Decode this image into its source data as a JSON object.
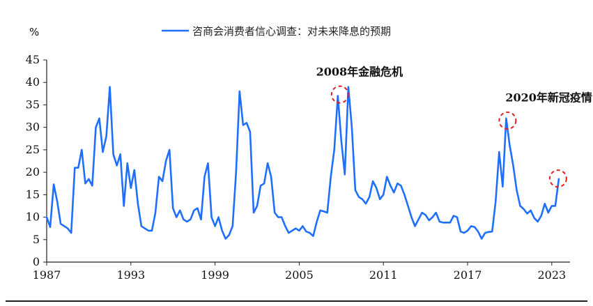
{
  "chart_data": {
    "type": "line",
    "ylabel": "%",
    "ylim": [
      0,
      45
    ],
    "y_ticks": [
      "0",
      "5",
      "10",
      "15",
      "20",
      "25",
      "30",
      "35",
      "40",
      "45"
    ],
    "xlim": [
      1987,
      2024.3
    ],
    "x_ticks": [
      {
        "value": 1987,
        "label": "1987"
      },
      {
        "value": 1993,
        "label": "1993"
      },
      {
        "value": 1999,
        "label": "1999"
      },
      {
        "value": 2005,
        "label": "2005"
      },
      {
        "value": 2011,
        "label": "2011"
      },
      {
        "value": 2017,
        "label": "2017"
      },
      {
        "value": 2023,
        "label": "2023"
      }
    ],
    "grid": false,
    "legend_position": "top-center",
    "series": [
      {
        "name": "咨商会消费者信心调查：对未来降息的预期",
        "color": "#1f6fff",
        "points": [
          [
            1987.0,
            10
          ],
          [
            1987.25,
            7.8
          ],
          [
            1987.5,
            17.3
          ],
          [
            1987.75,
            13.5
          ],
          [
            1988.0,
            8.5
          ],
          [
            1988.25,
            8
          ],
          [
            1988.5,
            7.5
          ],
          [
            1988.75,
            6.5
          ],
          [
            1989.0,
            21
          ],
          [
            1989.25,
            21
          ],
          [
            1989.5,
            25
          ],
          [
            1989.75,
            17.5
          ],
          [
            1990.0,
            18.5
          ],
          [
            1990.25,
            17
          ],
          [
            1990.5,
            30
          ],
          [
            1990.75,
            32
          ],
          [
            1991.0,
            24.5
          ],
          [
            1991.25,
            28
          ],
          [
            1991.5,
            39
          ],
          [
            1991.75,
            24
          ],
          [
            1992.0,
            21.5
          ],
          [
            1992.25,
            24
          ],
          [
            1992.5,
            12.5
          ],
          [
            1992.75,
            22
          ],
          [
            1993.0,
            16.5
          ],
          [
            1993.25,
            20.5
          ],
          [
            1993.5,
            13
          ],
          [
            1993.75,
            8
          ],
          [
            1994.0,
            7.5
          ],
          [
            1994.25,
            7
          ],
          [
            1994.5,
            7
          ],
          [
            1994.75,
            11
          ],
          [
            1995.0,
            19
          ],
          [
            1995.25,
            18
          ],
          [
            1995.5,
            22.5
          ],
          [
            1995.75,
            25
          ],
          [
            1996.0,
            12
          ],
          [
            1996.25,
            10
          ],
          [
            1996.5,
            11.5
          ],
          [
            1996.75,
            9.5
          ],
          [
            1997.0,
            9
          ],
          [
            1997.25,
            9.5
          ],
          [
            1997.5,
            11.5
          ],
          [
            1997.75,
            12
          ],
          [
            1998.0,
            9.5
          ],
          [
            1998.25,
            19
          ],
          [
            1998.5,
            22
          ],
          [
            1998.75,
            10
          ],
          [
            1999.0,
            8
          ],
          [
            1999.25,
            10
          ],
          [
            1999.5,
            7
          ],
          [
            1999.75,
            5.2
          ],
          [
            2000.0,
            6
          ],
          [
            2000.25,
            8
          ],
          [
            2000.5,
            20
          ],
          [
            2000.75,
            38
          ],
          [
            2001.0,
            30.5
          ],
          [
            2001.25,
            31
          ],
          [
            2001.5,
            29
          ],
          [
            2001.75,
            11
          ],
          [
            2002.0,
            12.5
          ],
          [
            2002.25,
            17
          ],
          [
            2002.5,
            17.5
          ],
          [
            2002.75,
            22
          ],
          [
            2003.0,
            19
          ],
          [
            2003.25,
            11
          ],
          [
            2003.5,
            10
          ],
          [
            2003.75,
            10
          ],
          [
            2004.0,
            8
          ],
          [
            2004.25,
            6.5
          ],
          [
            2004.5,
            7
          ],
          [
            2004.75,
            7.5
          ],
          [
            2005.0,
            7
          ],
          [
            2005.25,
            8
          ],
          [
            2005.5,
            6.8
          ],
          [
            2005.75,
            6.5
          ],
          [
            2006.0,
            5.8
          ],
          [
            2006.25,
            9
          ],
          [
            2006.5,
            11.5
          ],
          [
            2006.75,
            11.3
          ],
          [
            2007.0,
            11
          ],
          [
            2007.25,
            19
          ],
          [
            2007.5,
            25
          ],
          [
            2007.75,
            37
          ],
          [
            2008.0,
            27
          ],
          [
            2008.25,
            19.5
          ],
          [
            2008.5,
            39
          ],
          [
            2008.75,
            30
          ],
          [
            2009.0,
            16
          ],
          [
            2009.25,
            14.5
          ],
          [
            2009.5,
            14
          ],
          [
            2009.75,
            13
          ],
          [
            2010.0,
            14.5
          ],
          [
            2010.25,
            18
          ],
          [
            2010.5,
            16.5
          ],
          [
            2010.75,
            14
          ],
          [
            2011.0,
            15
          ],
          [
            2011.25,
            19
          ],
          [
            2011.5,
            17
          ],
          [
            2011.75,
            15.5
          ],
          [
            2012.0,
            17.5
          ],
          [
            2012.25,
            17
          ],
          [
            2012.5,
            15
          ],
          [
            2012.75,
            12.5
          ],
          [
            2013.0,
            10
          ],
          [
            2013.25,
            8
          ],
          [
            2013.5,
            9.5
          ],
          [
            2013.75,
            11
          ],
          [
            2014.0,
            10.5
          ],
          [
            2014.25,
            9.3
          ],
          [
            2014.5,
            10
          ],
          [
            2014.75,
            11
          ],
          [
            2015.0,
            9
          ],
          [
            2015.25,
            8.8
          ],
          [
            2015.5,
            8.8
          ],
          [
            2015.75,
            8.8
          ],
          [
            2016.0,
            10.3
          ],
          [
            2016.25,
            10
          ],
          [
            2016.5,
            6.8
          ],
          [
            2016.75,
            6.5
          ],
          [
            2017.0,
            7
          ],
          [
            2017.25,
            8
          ],
          [
            2017.5,
            7.8
          ],
          [
            2017.75,
            6.8
          ],
          [
            2018.0,
            5.2
          ],
          [
            2018.25,
            6.5
          ],
          [
            2018.5,
            6.7
          ],
          [
            2018.75,
            6.8
          ],
          [
            2019.0,
            13.5
          ],
          [
            2019.25,
            24.5
          ],
          [
            2019.5,
            16.8
          ],
          [
            2019.75,
            32
          ],
          [
            2020.0,
            26
          ],
          [
            2020.25,
            21.5
          ],
          [
            2020.5,
            16
          ],
          [
            2020.75,
            12.5
          ],
          [
            2021.0,
            11.8
          ],
          [
            2021.25,
            10.8
          ],
          [
            2021.5,
            11.5
          ],
          [
            2021.75,
            9.8
          ],
          [
            2022.0,
            9
          ],
          [
            2022.25,
            10.3
          ],
          [
            2022.5,
            13
          ],
          [
            2022.75,
            11
          ],
          [
            2023.0,
            12.5
          ],
          [
            2023.25,
            12.5
          ],
          [
            2023.5,
            18.5
          ]
        ]
      }
    ],
    "annotations": [
      {
        "text": "2008年金融危机",
        "x": 2007.9,
        "y": 37.3,
        "label_x": 2006.2,
        "label_y": 41.5
      },
      {
        "text": "2020年新冠疫情",
        "x": 2019.85,
        "y": 31.5,
        "label_x": 2019.7,
        "label_y": 35.8
      },
      {
        "text": "",
        "x": 2023.45,
        "y": 18.6,
        "label_x": 2023.45,
        "label_y": 18.6
      }
    ],
    "annotation_color": "#e02020"
  }
}
